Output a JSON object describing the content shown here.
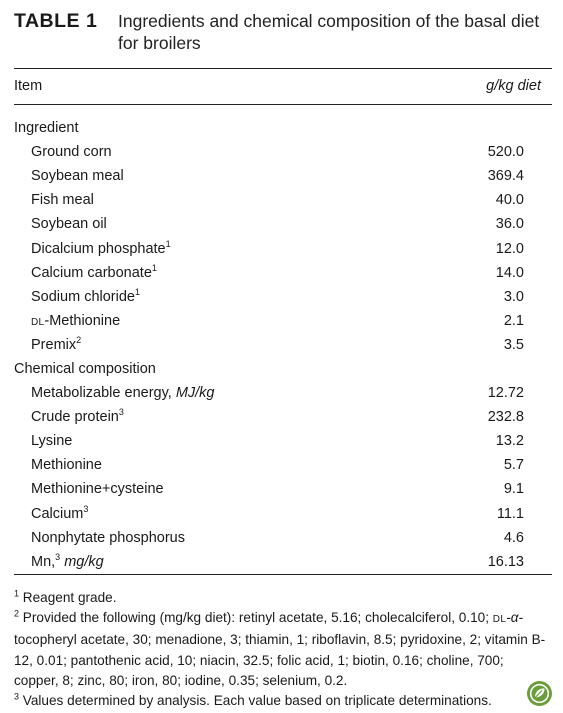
{
  "table": {
    "label": "TABLE 1",
    "caption": "Ingredients and chemical composition of the basal diet for broilers",
    "header": {
      "item": "Item",
      "unit": "g/kg diet"
    }
  },
  "sections": {
    "ingredient": {
      "title": "Ingredient",
      "rows": [
        {
          "label": "Ground corn",
          "value": "520.0"
        },
        {
          "label": "Soybean meal",
          "value": "369.4"
        },
        {
          "label": "Fish meal",
          "value": "40.0"
        },
        {
          "label": "Soybean oil",
          "value": "36.0"
        },
        {
          "label": "Dicalcium phosphate",
          "sup": "1",
          "value": "12.0"
        },
        {
          "label": "Calcium carbonate",
          "sup": "1",
          "value": "14.0"
        },
        {
          "label": "Sodium chloride",
          "sup": "1",
          "value": "3.0"
        },
        {
          "prefix": "DL",
          "label": "-Methionine",
          "value": "2.1"
        },
        {
          "label": "Premix",
          "sup": "2",
          "value": "3.5"
        }
      ]
    },
    "chemical": {
      "title": "Chemical composition",
      "rows": [
        {
          "label": "Metabolizable energy,",
          "unit": "MJ/kg",
          "value": "12.72"
        },
        {
          "label": "Crude protein",
          "sup": "3",
          "value": "232.8"
        },
        {
          "label": "Lysine",
          "value": "13.2"
        },
        {
          "label": "Methionine",
          "value": "5.7"
        },
        {
          "label": "Methionine+cysteine",
          "value": "9.1"
        },
        {
          "label": "Calcium",
          "sup": "3",
          "value": "11.1"
        },
        {
          "label": "Nonphytate phosphorus",
          "value": "4.6"
        },
        {
          "label": "Mn,",
          "sup": "3",
          "unit": "mg/kg",
          "value": "16.13"
        }
      ]
    }
  },
  "footnotes": {
    "note1": {
      "mark": "1",
      "text": "Reagent grade."
    },
    "note2": {
      "mark": "2",
      "text_before": "Provided the following (mg/kg diet): retinyl acetate, 5.16; cholecalciferol, 0.10; ",
      "smallcaps": "DL",
      "alpha": "-α-",
      "text_after": "tocopheryl acetate, 30; menadione, 3; thiamin, 1; riboflavin, 8.5; pyridoxine, 2; vitamin B-12, 0.01; pantothenic acid, 10; niacin, 32.5; folic acid, 1; biotin, 0.16; choline, 700; copper, 8; zinc, 80; iron, 80; iodine, 0.35; selenium, 0.2."
    },
    "note3": {
      "mark": "3",
      "text": "Values determined by analysis. Each value based on triplicate determinations."
    }
  },
  "logo": {
    "icon": "leaf-badge-icon",
    "color": "#6a9e3a"
  }
}
